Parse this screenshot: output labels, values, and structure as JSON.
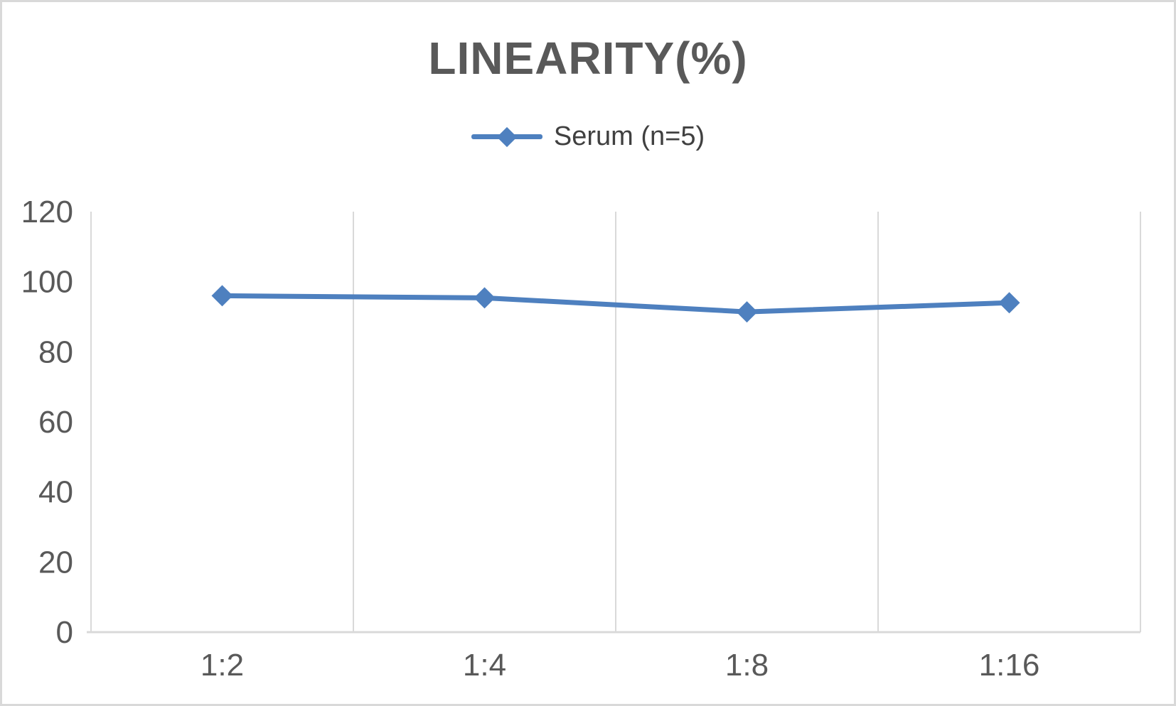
{
  "chart_data": {
    "type": "line",
    "title": "LINEARITY(%)",
    "categories": [
      "1:2",
      "1:4",
      "1:8",
      "1:16"
    ],
    "series": [
      {
        "name": "Serum (n=5)",
        "values": [
          96,
          95.4,
          91.4,
          94
        ],
        "marker": "diamond"
      }
    ],
    "xlabel": "",
    "ylabel": "",
    "ylim": [
      0,
      120
    ],
    "yticks": [
      0,
      20,
      40,
      60,
      80,
      100,
      120
    ],
    "grid": "vertical-only",
    "legend_position": "top-center",
    "colors": {
      "series": "#4e80bf",
      "title_text": "#595959",
      "axis_text": "#595959",
      "legend_text": "#404040",
      "gridline": "#d9d9d9",
      "axis_line": "#d9d9d9",
      "border": "#d9d9d9",
      "background": "#ffffff"
    }
  }
}
